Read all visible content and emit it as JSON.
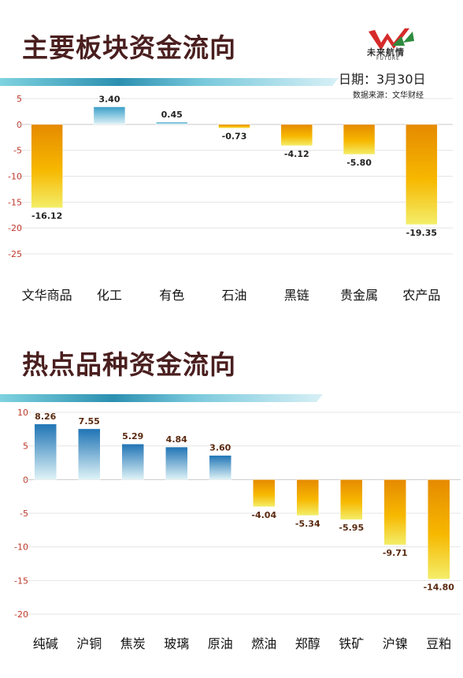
{
  "header": {
    "logo_text": "未来航情",
    "logo_sub": "FUTURE",
    "date": "日期：3月30日",
    "source": "数据来源：文华财经",
    "brand_colors": {
      "title": "#4a1f1f",
      "logo_red": "#d62a2a",
      "logo_green": "#2e8b3e"
    }
  },
  "chart_data": [
    {
      "type": "bar",
      "title": "主要板块资金流向",
      "categories": [
        "文华商品",
        "化工",
        "有色",
        "石油",
        "黑链",
        "贵金属",
        "农产品"
      ],
      "values": [
        -16.12,
        3.4,
        0.45,
        -0.73,
        -4.12,
        -5.8,
        -19.35
      ],
      "value_labels": [
        "-16.12",
        "3.40",
        "0.45",
        "-0.73",
        "-4.12",
        "-5.80",
        "-19.35"
      ],
      "yticks": [
        "5",
        "0",
        "-5",
        "-10",
        "-15",
        "-20",
        "-25"
      ],
      "ylim": [
        -25,
        5
      ],
      "grid": true,
      "colors": {
        "positive": "#3a9ec9",
        "negative": "#f0a500"
      }
    },
    {
      "type": "bar",
      "title": "热点品种资金流向",
      "categories": [
        "纯碱",
        "沪铜",
        "焦炭",
        "玻璃",
        "原油",
        "燃油",
        "郑醇",
        "铁矿",
        "沪镍",
        "豆粕"
      ],
      "values": [
        8.26,
        7.55,
        5.29,
        4.84,
        3.6,
        -4.04,
        -5.34,
        -5.95,
        -9.71,
        -14.8
      ],
      "value_labels": [
        "8.26",
        "7.55",
        "5.29",
        "4.84",
        "3.60",
        "-4.04",
        "-5.34",
        "-5.95",
        "-9.71",
        "-14.80"
      ],
      "yticks": [
        "10",
        "5",
        "0",
        "-5",
        "-10",
        "-15",
        "-20"
      ],
      "ylim": [
        -20,
        10
      ],
      "grid": true,
      "colors": {
        "positive": "#1f74b5",
        "negative": "#f0a500"
      }
    }
  ]
}
